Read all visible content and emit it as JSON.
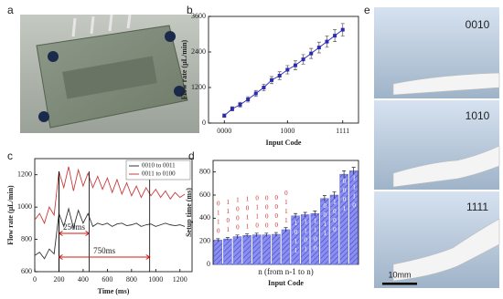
{
  "panel_labels": [
    "a",
    "b",
    "c",
    "d",
    "e"
  ],
  "photos": {
    "labels": [
      "0010",
      "1010",
      "1111"
    ],
    "scale_bar": "10mm"
  },
  "chart_data": [
    {
      "type": "line",
      "x_label": "Input Code",
      "y_label": "Flow rate (μL/min)",
      "x": [
        0,
        1,
        2,
        3,
        4,
        5,
        6,
        7,
        8,
        9,
        10,
        11,
        12,
        13,
        14,
        15
      ],
      "series": [
        {
          "color": "#2b2bb8",
          "values": [
            250,
            480,
            620,
            800,
            1000,
            1200,
            1450,
            1600,
            1800,
            1950,
            2150,
            2350,
            2550,
            2750,
            2950,
            3150
          ],
          "errors": [
            60,
            70,
            80,
            90,
            100,
            110,
            120,
            130,
            140,
            150,
            160,
            170,
            180,
            190,
            200,
            210
          ]
        }
      ],
      "xlim": [
        -2,
        17
      ],
      "xticks": [
        {
          "value": 0,
          "label": "0000"
        },
        {
          "value": 8,
          "label": "1000"
        },
        {
          "value": 15,
          "label": "1111"
        }
      ],
      "ylim": [
        0,
        3600
      ],
      "yticks": [
        0,
        1200,
        2400,
        3600
      ]
    },
    {
      "type": "line",
      "x_label": "Time (ms)",
      "y_label": "Flow rate (μL/min)",
      "x": [
        0,
        40,
        80,
        120,
        160,
        200,
        240,
        280,
        320,
        360,
        400,
        440,
        480,
        520,
        560,
        600,
        640,
        680,
        720,
        760,
        800,
        840,
        880,
        920,
        960,
        1000,
        1040,
        1080,
        1120,
        1160,
        1200,
        1240
      ],
      "series": [
        {
          "name": "0010  to  0011",
          "color": "#333333",
          "values": [
            700,
            720,
            680,
            740,
            710,
            960,
            880,
            990,
            870,
            980,
            900,
            960,
            880,
            900,
            890,
            900,
            880,
            895,
            900,
            885,
            890,
            900,
            880,
            890,
            895,
            880,
            890,
            900,
            890,
            885,
            890,
            880
          ]
        },
        {
          "name": "0011  to  0100",
          "color": "#c83c3c",
          "values": [
            920,
            960,
            900,
            1000,
            950,
            1220,
            1120,
            1250,
            1100,
            1230,
            1130,
            1210,
            1120,
            1190,
            1110,
            1180,
            1090,
            1170,
            1080,
            1150,
            1070,
            1130,
            1060,
            1120,
            1070,
            1110,
            1060,
            1100,
            1050,
            1090,
            1060,
            1080
          ]
        }
      ],
      "annotations": [
        {
          "text": "250ms",
          "x0": 200,
          "x1": 450
        },
        {
          "text": "750ms",
          "x0": 200,
          "x1": 950
        }
      ],
      "xlim": [
        0,
        1300
      ],
      "xticks": [
        0,
        200,
        400,
        600,
        800,
        1000,
        1200
      ],
      "ylim": [
        600,
        1300
      ],
      "yticks": [
        600,
        800,
        1000,
        1200
      ],
      "legend": "upper right"
    },
    {
      "type": "bar",
      "x_label": "n (from n-1 to n)",
      "x_label_2": "Input Code",
      "y_label": "Setup time (ms)",
      "color": "#6a70e0",
      "categories": [
        "0110",
        "1101",
        "1000",
        "1011",
        "0110",
        "0000",
        "0000",
        "0111",
        "1011",
        "1101",
        "1100",
        "0011",
        "1000",
        "0001",
        "1110"
      ],
      "values": [
        210,
        220,
        240,
        250,
        255,
        255,
        260,
        300,
        420,
        430,
        440,
        570,
        600,
        780,
        810
      ],
      "errors": [
        12,
        12,
        14,
        14,
        15,
        15,
        16,
        18,
        20,
        20,
        22,
        25,
        28,
        30,
        30
      ],
      "ylim": [
        0,
        900
      ],
      "yticks": [
        0,
        200,
        400,
        600,
        800
      ]
    }
  ]
}
